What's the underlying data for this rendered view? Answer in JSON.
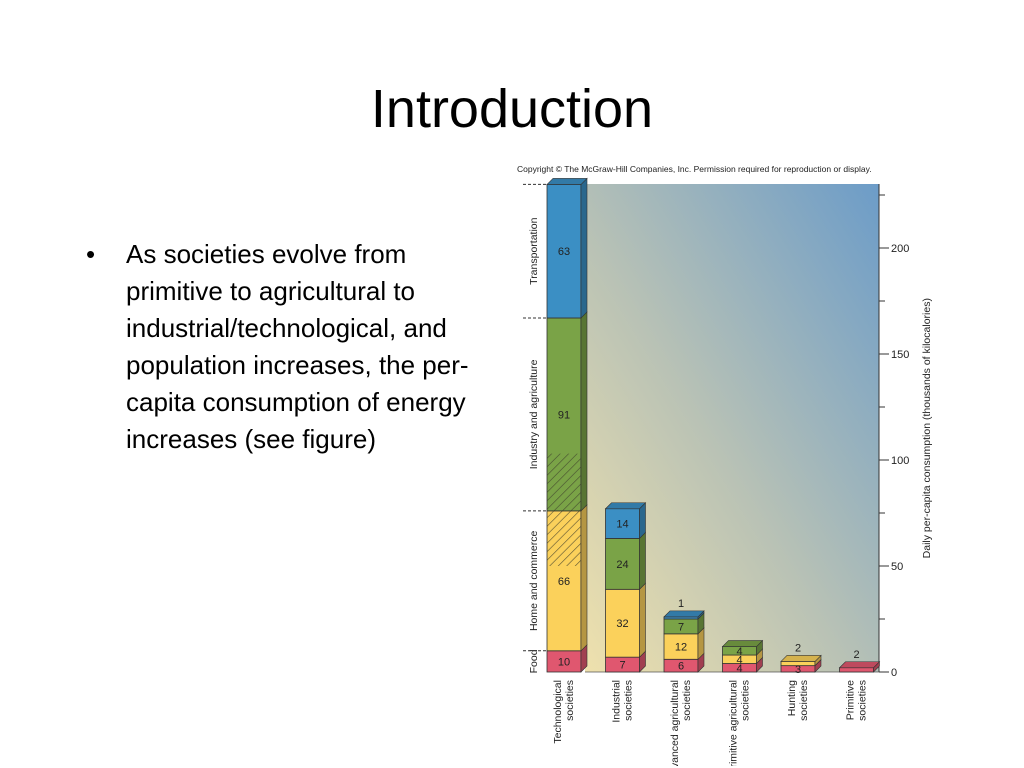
{
  "slide": {
    "title": "Introduction",
    "bullets": [
      "As societies evolve from primitive to agricultural to industrial/technological, and population increases, the per-capita consumption of energy increases (see figure)"
    ],
    "bullet_symbol": "•"
  },
  "figure": {
    "copyright": "Copyright © The McGraw-Hill Companies, Inc. Permission required for reproduction or display."
  },
  "chart_data": {
    "type": "bar",
    "stacked": true,
    "categories": [
      "Technological societies",
      "Industrial societies",
      "Advanced agricultural societies",
      "Primitive agricultural societies",
      "Hunting societies",
      "Primitive societies"
    ],
    "series": [
      {
        "name": "Food",
        "color": "#e0576f",
        "values": [
          10,
          7,
          6,
          4,
          3,
          2
        ]
      },
      {
        "name": "Home and commerce",
        "color": "#fbd15b",
        "values": [
          66,
          32,
          12,
          4,
          2,
          0
        ]
      },
      {
        "name": "Industry and agriculture",
        "color": "#7aa347",
        "values": [
          91,
          24,
          7,
          4,
          0,
          0
        ]
      },
      {
        "name": "Transportation",
        "color": "#3b8fc4",
        "values": [
          63,
          14,
          1,
          0,
          0,
          0
        ]
      }
    ],
    "ylabel": "Daily per-capita consumption (thousands of kilocalories)",
    "ylim": [
      0,
      230
    ],
    "yticks": [
      0,
      50,
      100,
      150,
      200
    ],
    "y_axis_side": "right",
    "legend_placement": "left (vertical labels alongside first bar)"
  }
}
